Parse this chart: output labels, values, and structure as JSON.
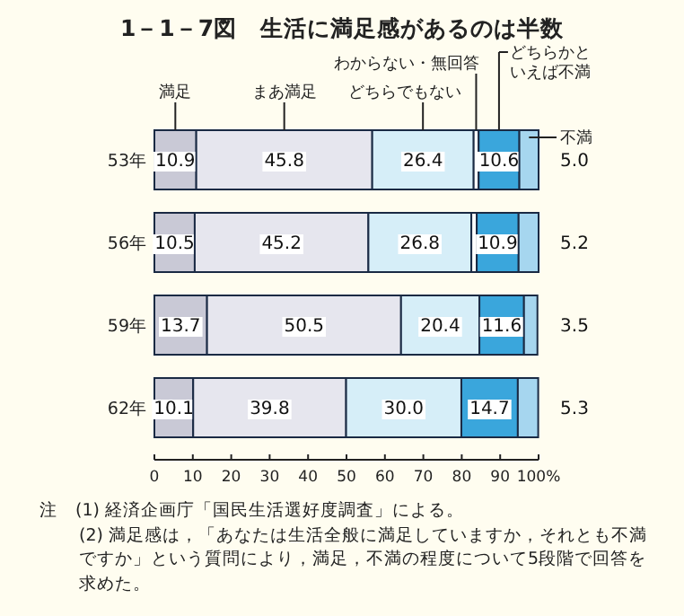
{
  "chart_data": {
    "type": "bar",
    "orientation": "horizontal",
    "stacked": true,
    "title": "1－1－7図　生活に満足感があるのは半数",
    "categories": [
      "53年",
      "56年",
      "59年",
      "62年"
    ],
    "series": [
      {
        "name": "満足",
        "color": "#c9c9d6",
        "values": [
          10.9,
          10.5,
          13.7,
          10.1
        ],
        "value_labels": [
          "10.9",
          "10.5",
          "13.7",
          "10.1"
        ]
      },
      {
        "name": "まあ満足",
        "color": "#e6e6ee",
        "values": [
          45.8,
          45.2,
          50.5,
          39.8
        ],
        "value_labels": [
          "45.8",
          "45.2",
          "50.5",
          "39.8"
        ]
      },
      {
        "name": "どちらでもない",
        "color": "#d6eef8",
        "values": [
          26.4,
          26.8,
          20.4,
          30.0
        ],
        "value_labels": [
          "26.4",
          "26.8",
          "20.4",
          "30.0"
        ]
      },
      {
        "name": "わからない・無回答",
        "color": "#ffffff",
        "values": [
          1.3,
          1.4,
          null,
          null
        ]
      },
      {
        "name": "どちらかといえば不満",
        "color": "#3aa6dc",
        "values": [
          10.6,
          10.9,
          11.6,
          14.7
        ],
        "value_labels": [
          "10.6",
          "10.9",
          "11.6",
          "14.7"
        ]
      },
      {
        "name": "不満",
        "color": "#a6d6ef",
        "values": [
          5.0,
          5.2,
          3.5,
          5.3
        ],
        "value_labels": [
          "5.0",
          "5.2",
          "3.5",
          "5.3"
        ]
      }
    ],
    "xlim": [
      0,
      100
    ],
    "xticks": [
      0,
      10,
      20,
      30,
      40,
      50,
      60,
      70,
      80,
      90,
      {
        "value": 100,
        "label": "100%"
      }
    ],
    "legend": "top",
    "grid": false,
    "annotations": [
      "注　(1) 経済企画庁「国民生活選好度調査」による。",
      "(2) 満足感は，「あなたは生活全般に満足していますか，それとも不満ですか」という質問により，満足，不満の程度について5段階で回答を求めた。"
    ]
  }
}
